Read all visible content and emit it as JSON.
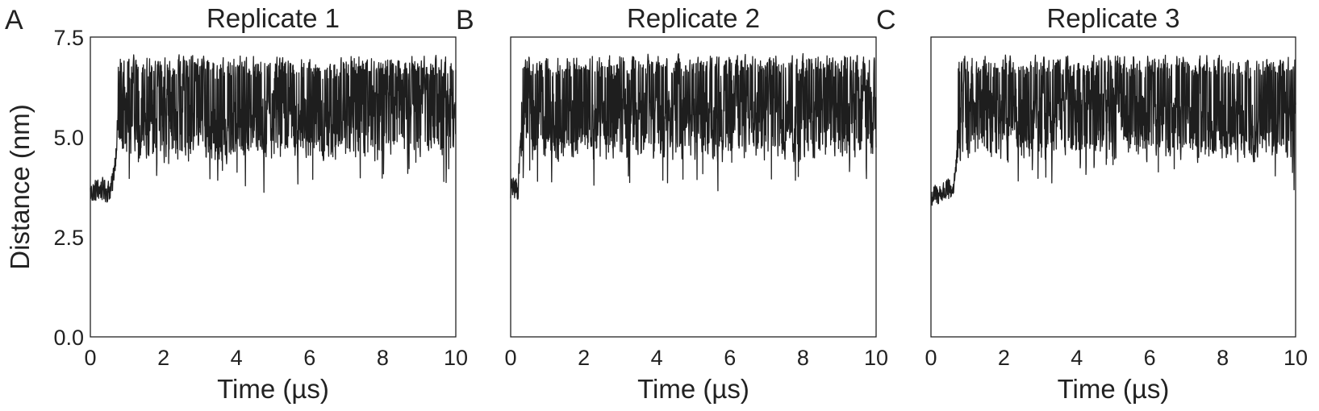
{
  "chart_data": [
    {
      "type": "line",
      "panel_label": "A",
      "title": "Replicate 1",
      "xlabel": "Time (µs)",
      "ylabel": "Distance (nm)",
      "xlim": [
        0,
        10
      ],
      "ylim": [
        0,
        7.5
      ],
      "xticks": [
        0,
        2,
        4,
        6,
        8,
        10
      ],
      "yticks": [
        "0.0",
        "2.5",
        "5.0",
        "7.5"
      ],
      "grid": false,
      "series": [
        {
          "color": "#1e1e1e",
          "transition_time": 0.75,
          "initial_mean": 3.65,
          "final_low": 4.3,
          "final_high": 7.1,
          "x": [
            0,
            0.25,
            0.5,
            0.6,
            0.7,
            0.8,
            1.0,
            1.5,
            2.0,
            3.0,
            3.5,
            4.0,
            5.0,
            6.0,
            7.0,
            8.0,
            9.0,
            9.5,
            10.0
          ],
          "y": [
            3.6,
            3.7,
            3.65,
            3.8,
            4.6,
            6.3,
            5.6,
            5.4,
            5.7,
            5.5,
            5.0,
            5.2,
            5.6,
            5.5,
            5.4,
            5.9,
            6.2,
            5.5,
            5.6
          ]
        }
      ]
    },
    {
      "type": "line",
      "panel_label": "B",
      "title": "Replicate 2",
      "xlabel": "Time (µs)",
      "ylabel": "",
      "xlim": [
        0,
        10
      ],
      "ylim": [
        0,
        7.5
      ],
      "xticks": [
        0,
        2,
        4,
        6,
        8,
        10
      ],
      "yticks": [],
      "grid": false,
      "series": [
        {
          "color": "#1e1e1e",
          "transition_time": 0.28,
          "initial_mean": 3.65,
          "final_low": 4.3,
          "final_high": 7.1,
          "x": [
            0,
            0.2,
            0.3,
            0.5,
            1.0,
            2.0,
            3.0,
            4.0,
            5.0,
            6.0,
            7.0,
            8.0,
            9.0,
            9.5,
            10.0
          ],
          "y": [
            3.7,
            3.7,
            5.5,
            5.8,
            5.4,
            5.2,
            5.6,
            5.4,
            5.5,
            5.6,
            5.5,
            5.3,
            5.4,
            5.8,
            5.7
          ]
        }
      ]
    },
    {
      "type": "line",
      "panel_label": "C",
      "title": "Replicate 3",
      "xlabel": "Time (µs)",
      "ylabel": "",
      "xlim": [
        0,
        10
      ],
      "ylim": [
        0,
        7.5
      ],
      "xticks": [
        0,
        2,
        4,
        6,
        8,
        10
      ],
      "yticks": [],
      "grid": false,
      "series": [
        {
          "color": "#1e1e1e",
          "transition_time": 0.72,
          "initial_mean": 3.55,
          "final_low": 4.3,
          "final_high": 7.1,
          "x": [
            0,
            0.3,
            0.6,
            0.7,
            0.8,
            1.0,
            2.0,
            3.0,
            4.0,
            5.0,
            6.0,
            7.0,
            8.0,
            9.0,
            10.0
          ],
          "y": [
            3.5,
            3.6,
            3.7,
            4.3,
            5.6,
            5.8,
            5.5,
            5.3,
            5.8,
            5.5,
            5.4,
            5.3,
            5.2,
            5.3,
            5.4
          ]
        }
      ]
    }
  ]
}
